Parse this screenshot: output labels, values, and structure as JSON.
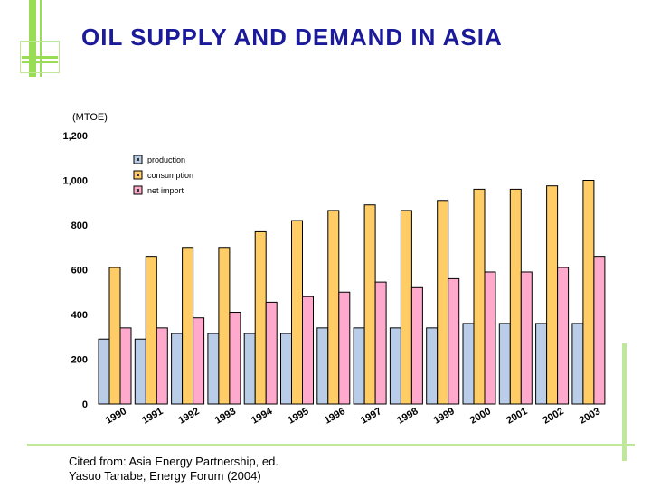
{
  "title": "OIL SUPPLY AND DEMAND IN ASIA",
  "unit_label": "(MTOE)",
  "source": {
    "line1": "Cited from: Asia Energy Partnership, ed.",
    "line2": "Yasuo Tanabe, Energy Forum (2004)"
  },
  "chart_data": {
    "type": "bar",
    "title": "OIL SUPPLY AND DEMAND IN ASIA",
    "ylabel": "(MTOE)",
    "xlabel": "",
    "ylim": [
      0,
      1200
    ],
    "yticks": [
      "0",
      "200",
      "400",
      "600",
      "800",
      "1,000",
      "1,200"
    ],
    "ytick_values": [
      0,
      200,
      400,
      600,
      800,
      1000,
      1200
    ],
    "grid": false,
    "legend_position": "top-left",
    "categories": [
      "1990",
      "1991",
      "1992",
      "1993",
      "1994",
      "1995",
      "1996",
      "1997",
      "1998",
      "1999",
      "2000",
      "2001",
      "2002",
      "2003"
    ],
    "series": [
      {
        "name": "production",
        "color": "#b9cde8",
        "values": [
          290,
          290,
          315,
          315,
          315,
          315,
          340,
          340,
          340,
          340,
          360,
          360,
          360,
          360
        ]
      },
      {
        "name": "consumption",
        "color": "#ffcc66",
        "values": [
          610,
          660,
          700,
          700,
          770,
          820,
          865,
          890,
          865,
          910,
          960,
          960,
          975,
          1000
        ]
      },
      {
        "name": "net import",
        "color": "#ffaacc",
        "values": [
          340,
          340,
          385,
          410,
          455,
          480,
          500,
          545,
          520,
          560,
          590,
          590,
          610,
          660
        ]
      }
    ]
  }
}
